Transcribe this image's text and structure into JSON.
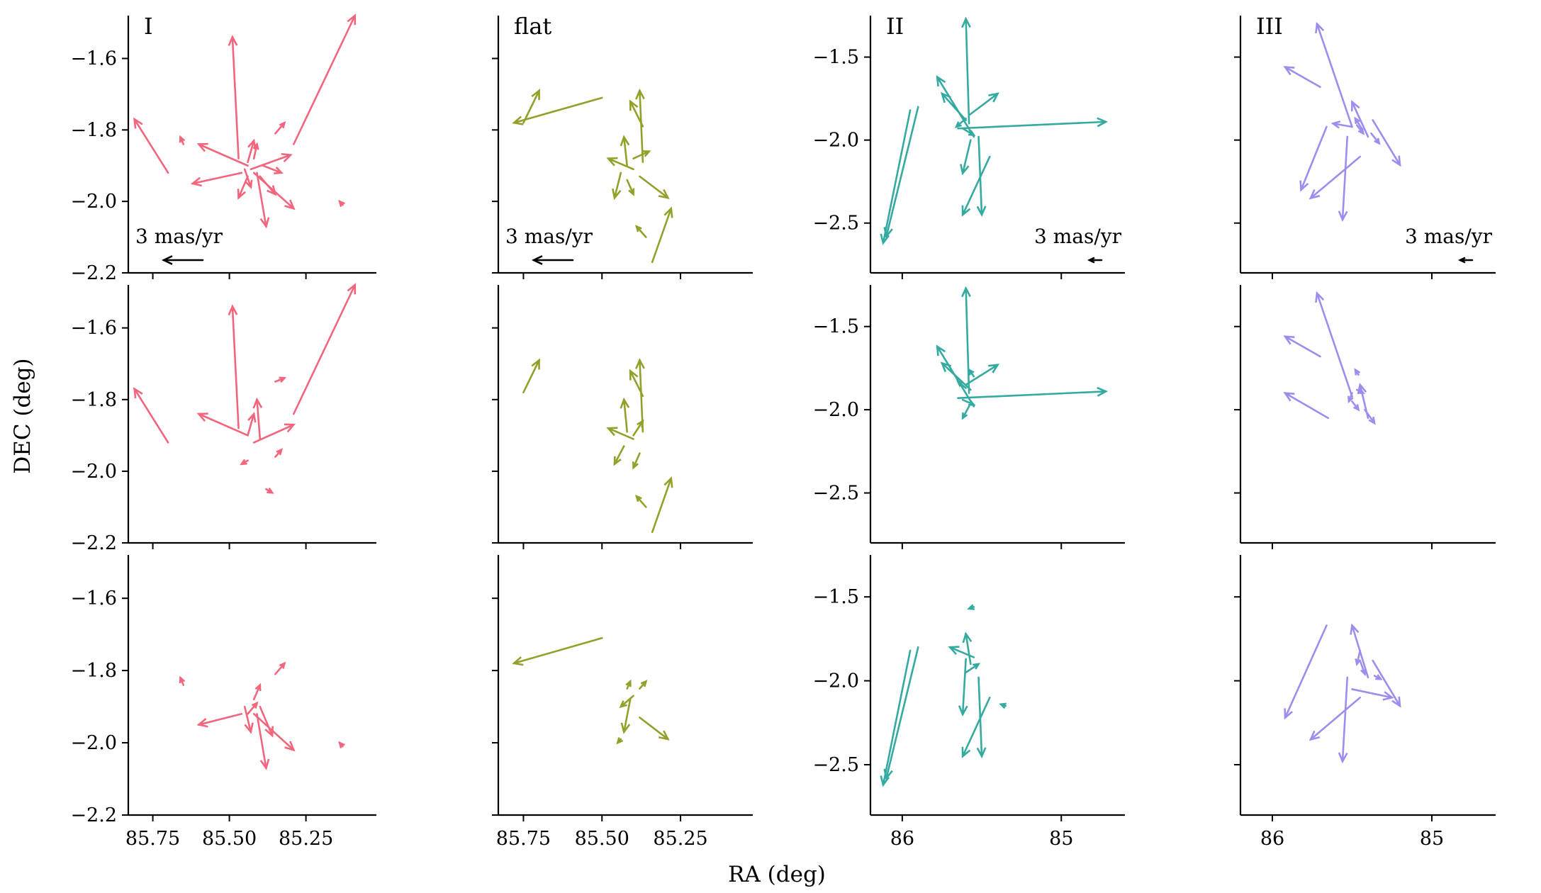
{
  "chart_data": {
    "type": "quiver",
    "title": "",
    "xlabel": "RA (deg)",
    "ylabel": "DEC  (deg)",
    "x_inverted": true,
    "row_layout": "3 rows × 4 columns; each column shares axes",
    "key_label": "3 mas/yr",
    "columns": [
      {
        "label": "I",
        "color": "#f2667d",
        "xlim": [
          85.83,
          85.02
        ],
        "ylim": [
          -2.2,
          -1.48
        ],
        "xticks": [
          85.75,
          85.5,
          85.25
        ],
        "xtick_labels": [
          "85.75",
          "85.50",
          "85.25"
        ],
        "yticks": [
          -2.2,
          -2.0,
          -1.8,
          -1.6
        ],
        "ytick_labels": [
          "−2.2",
          "−2.0",
          "−1.8",
          "−1.6"
        ]
      },
      {
        "label": "flat",
        "color": "#93a02a",
        "xlim": [
          85.83,
          85.02
        ],
        "ylim": [
          -2.2,
          -1.48
        ],
        "xticks": [
          85.75,
          85.5,
          85.25
        ],
        "xtick_labels": [
          "85.75",
          "85.50",
          "85.25"
        ],
        "yticks": [
          -2.2,
          -2.0,
          -1.8,
          -1.6
        ],
        "ytick_labels": [
          "",
          "",
          "",
          ""
        ]
      },
      {
        "label": "II",
        "color": "#34aaa0",
        "xlim": [
          86.2,
          84.6
        ],
        "ylim": [
          -2.8,
          -1.25
        ],
        "xticks": [
          86,
          85
        ],
        "xtick_labels": [
          "86",
          "85"
        ],
        "yticks": [
          -2.5,
          -2.0,
          -1.5
        ],
        "ytick_labels": [
          "−2.5",
          "−2.0",
          "−1.5"
        ]
      },
      {
        "label": "III",
        "color": "#a08cee",
        "xlim": [
          86.2,
          84.6
        ],
        "ylim": [
          -2.8,
          -1.25
        ],
        "xticks": [
          86,
          85
        ],
        "xtick_labels": [
          "86",
          "85"
        ],
        "yticks": [
          -2.5,
          -2.0,
          -1.5
        ],
        "ytick_labels": [
          "",
          "",
          ""
        ]
      }
    ],
    "panels": [
      {
        "row": 0,
        "col": 0,
        "key": true,
        "vectors": [
          [
            85.7,
            -1.92,
            85.81,
            -1.77
          ],
          [
            85.47,
            -1.88,
            85.49,
            -1.54
          ],
          [
            85.29,
            -1.84,
            85.09,
            -1.48
          ],
          [
            85.44,
            -1.9,
            85.6,
            -1.84
          ],
          [
            85.43,
            -1.91,
            85.3,
            -1.87
          ],
          [
            85.42,
            -1.92,
            85.29,
            -2.02
          ],
          [
            85.41,
            -1.92,
            85.38,
            -2.07
          ],
          [
            85.46,
            -1.92,
            85.62,
            -1.95
          ],
          [
            85.35,
            -1.81,
            85.32,
            -1.78
          ],
          [
            85.13,
            -2.01,
            85.14,
            -2.0
          ],
          [
            85.65,
            -1.84,
            85.66,
            -1.82
          ],
          [
            85.44,
            -1.89,
            85.42,
            -1.83
          ],
          [
            85.44,
            -1.93,
            85.47,
            -1.99
          ],
          [
            85.4,
            -1.93,
            85.35,
            -1.98
          ],
          [
            85.39,
            -1.9,
            85.33,
            -1.92
          ],
          [
            85.45,
            -1.91,
            85.43,
            -1.96
          ],
          [
            85.42,
            -1.88,
            85.41,
            -1.84
          ]
        ]
      },
      {
        "row": 0,
        "col": 1,
        "key": true,
        "vectors": [
          [
            85.5,
            -1.71,
            85.78,
            -1.78
          ],
          [
            85.75,
            -1.78,
            85.7,
            -1.69
          ],
          [
            85.37,
            -1.89,
            85.38,
            -1.69
          ],
          [
            85.37,
            -1.79,
            85.41,
            -1.72
          ],
          [
            85.38,
            -1.93,
            85.29,
            -1.99
          ],
          [
            85.34,
            -2.17,
            85.28,
            -2.02
          ],
          [
            85.4,
            -1.91,
            85.48,
            -1.88
          ],
          [
            85.42,
            -1.9,
            85.43,
            -1.82
          ],
          [
            85.44,
            -1.92,
            85.46,
            -1.99
          ],
          [
            85.36,
            -2.1,
            85.39,
            -2.07
          ],
          [
            85.4,
            -1.88,
            85.35,
            -1.86
          ],
          [
            85.42,
            -1.94,
            85.4,
            -1.98
          ]
        ]
      },
      {
        "row": 0,
        "col": 2,
        "key": true,
        "vectors": [
          [
            85.65,
            -1.93,
            84.72,
            -1.89
          ],
          [
            85.58,
            -1.9,
            85.6,
            -1.27
          ],
          [
            85.95,
            -1.82,
            86.12,
            -2.62
          ],
          [
            85.9,
            -1.8,
            86.1,
            -2.58
          ],
          [
            85.55,
            -1.98,
            85.78,
            -1.62
          ],
          [
            85.45,
            -2.1,
            85.62,
            -2.45
          ],
          [
            85.52,
            -1.98,
            85.5,
            -2.45
          ],
          [
            85.58,
            -1.85,
            85.4,
            -1.72
          ],
          [
            85.6,
            -1.88,
            85.75,
            -1.72
          ],
          [
            85.62,
            -1.93,
            85.55,
            -1.97
          ],
          [
            85.57,
            -2.0,
            85.62,
            -2.2
          ],
          [
            85.6,
            -1.87,
            85.66,
            -1.92
          ]
        ]
      },
      {
        "row": 0,
        "col": 3,
        "key": true,
        "vectors": [
          [
            85.5,
            -1.92,
            85.72,
            -1.3
          ],
          [
            85.7,
            -1.68,
            85.92,
            -1.56
          ],
          [
            85.66,
            -1.92,
            85.82,
            -2.3
          ],
          [
            85.45,
            -2.1,
            85.76,
            -2.35
          ],
          [
            85.53,
            -1.98,
            85.56,
            -2.48
          ],
          [
            85.4,
            -1.98,
            85.5,
            -1.77
          ],
          [
            85.37,
            -1.88,
            85.2,
            -2.15
          ],
          [
            85.44,
            -1.93,
            85.48,
            -1.87
          ],
          [
            85.47,
            -1.91,
            85.43,
            -1.96
          ],
          [
            85.38,
            -1.96,
            85.33,
            -2.02
          ],
          [
            85.5,
            -1.92,
            85.62,
            -1.9
          ]
        ]
      },
      {
        "row": 1,
        "col": 0,
        "key": false,
        "vectors": [
          [
            85.7,
            -1.92,
            85.81,
            -1.77
          ],
          [
            85.47,
            -1.88,
            85.49,
            -1.54
          ],
          [
            85.29,
            -1.84,
            85.09,
            -1.48
          ],
          [
            85.44,
            -1.9,
            85.6,
            -1.84
          ],
          [
            85.42,
            -1.92,
            85.29,
            -1.87
          ],
          [
            85.4,
            -1.91,
            85.41,
            -1.8
          ],
          [
            85.35,
            -1.75,
            85.32,
            -1.74
          ],
          [
            85.38,
            -2.05,
            85.36,
            -2.06
          ],
          [
            85.44,
            -1.97,
            85.46,
            -1.98
          ],
          [
            85.35,
            -1.96,
            85.33,
            -1.94
          ],
          [
            85.44,
            -1.9,
            85.42,
            -1.84
          ]
        ]
      },
      {
        "row": 1,
        "col": 1,
        "key": false,
        "vectors": [
          [
            85.75,
            -1.78,
            85.7,
            -1.69
          ],
          [
            85.37,
            -1.89,
            85.38,
            -1.69
          ],
          [
            85.37,
            -1.79,
            85.41,
            -1.72
          ],
          [
            85.34,
            -2.17,
            85.28,
            -2.02
          ],
          [
            85.36,
            -2.1,
            85.39,
            -2.07
          ],
          [
            85.4,
            -1.91,
            85.48,
            -1.88
          ],
          [
            85.42,
            -1.89,
            85.43,
            -1.8
          ],
          [
            85.43,
            -1.93,
            85.46,
            -1.98
          ],
          [
            85.4,
            -1.9,
            85.37,
            -1.86
          ],
          [
            85.38,
            -1.95,
            85.4,
            -1.99
          ]
        ]
      },
      {
        "row": 1,
        "col": 2,
        "key": false,
        "vectors": [
          [
            85.65,
            -1.93,
            84.72,
            -1.89
          ],
          [
            85.58,
            -1.9,
            85.6,
            -1.27
          ],
          [
            85.55,
            -1.98,
            85.78,
            -1.62
          ],
          [
            85.57,
            -1.88,
            85.75,
            -1.72
          ],
          [
            85.6,
            -1.85,
            85.4,
            -1.73
          ],
          [
            85.62,
            -1.94,
            85.55,
            -1.97
          ],
          [
            85.6,
            -1.87,
            85.65,
            -1.83
          ],
          [
            85.58,
            -1.98,
            85.62,
            -2.05
          ],
          [
            85.55,
            -1.8,
            85.58,
            -1.76
          ]
        ]
      },
      {
        "row": 1,
        "col": 3,
        "key": false,
        "vectors": [
          [
            85.5,
            -1.92,
            85.72,
            -1.3
          ],
          [
            85.7,
            -1.68,
            85.92,
            -1.56
          ],
          [
            85.65,
            -2.05,
            85.92,
            -1.9
          ],
          [
            85.4,
            -2.05,
            85.45,
            -1.85
          ],
          [
            85.5,
            -1.95,
            85.46,
            -2.0
          ],
          [
            85.47,
            -1.88,
            85.43,
            -1.9
          ],
          [
            85.42,
            -2.0,
            85.36,
            -2.08
          ],
          [
            85.46,
            -1.79,
            85.48,
            -1.76
          ],
          [
            85.5,
            -1.9,
            85.52,
            -1.95
          ]
        ]
      },
      {
        "row": 2,
        "col": 0,
        "key": false,
        "vectors": [
          [
            85.42,
            -1.92,
            85.29,
            -2.02
          ],
          [
            85.41,
            -1.92,
            85.38,
            -2.07
          ],
          [
            85.46,
            -1.92,
            85.6,
            -1.95
          ],
          [
            85.44,
            -1.92,
            85.41,
            -1.89
          ],
          [
            85.45,
            -1.9,
            85.43,
            -1.97
          ],
          [
            85.4,
            -1.9,
            85.36,
            -1.98
          ],
          [
            85.35,
            -1.81,
            85.32,
            -1.78
          ],
          [
            85.13,
            -2.01,
            85.14,
            -2.0
          ],
          [
            85.65,
            -1.84,
            85.66,
            -1.82
          ],
          [
            85.42,
            -1.88,
            85.4,
            -1.84
          ]
        ]
      },
      {
        "row": 2,
        "col": 1,
        "key": false,
        "vectors": [
          [
            85.5,
            -1.71,
            85.78,
            -1.78
          ],
          [
            85.38,
            -1.93,
            85.29,
            -1.99
          ],
          [
            85.4,
            -1.87,
            85.44,
            -1.9
          ],
          [
            85.41,
            -1.88,
            85.43,
            -1.97
          ],
          [
            85.42,
            -1.85,
            85.41,
            -1.83
          ],
          [
            85.44,
            -1.99,
            85.45,
            -2.0
          ],
          [
            85.38,
            -1.85,
            85.36,
            -1.83
          ]
        ]
      },
      {
        "row": 2,
        "col": 2,
        "key": false,
        "vectors": [
          [
            85.95,
            -1.82,
            86.12,
            -2.62
          ],
          [
            85.9,
            -1.8,
            86.1,
            -2.58
          ],
          [
            85.52,
            -1.98,
            85.5,
            -2.45
          ],
          [
            85.45,
            -2.1,
            85.62,
            -2.45
          ],
          [
            85.57,
            -1.9,
            85.6,
            -1.72
          ],
          [
            85.6,
            -1.95,
            85.52,
            -1.9
          ],
          [
            85.6,
            -1.87,
            85.62,
            -2.2
          ],
          [
            85.55,
            -1.86,
            85.7,
            -1.8
          ],
          [
            85.35,
            -2.15,
            85.38,
            -2.14
          ],
          [
            85.55,
            -1.56,
            85.58,
            -1.57
          ]
        ]
      },
      {
        "row": 2,
        "col": 3,
        "key": false,
        "vectors": [
          [
            85.66,
            -1.67,
            85.92,
            -2.22
          ],
          [
            85.45,
            -2.1,
            85.76,
            -2.35
          ],
          [
            85.53,
            -1.98,
            85.56,
            -2.48
          ],
          [
            85.4,
            -1.98,
            85.5,
            -1.67
          ],
          [
            85.37,
            -1.88,
            85.2,
            -2.15
          ],
          [
            85.5,
            -2.05,
            85.25,
            -2.1
          ],
          [
            85.45,
            -1.82,
            85.47,
            -1.9
          ],
          [
            85.45,
            -1.88,
            85.42,
            -1.96
          ],
          [
            85.36,
            -1.97,
            85.32,
            -1.99
          ]
        ]
      }
    ]
  }
}
